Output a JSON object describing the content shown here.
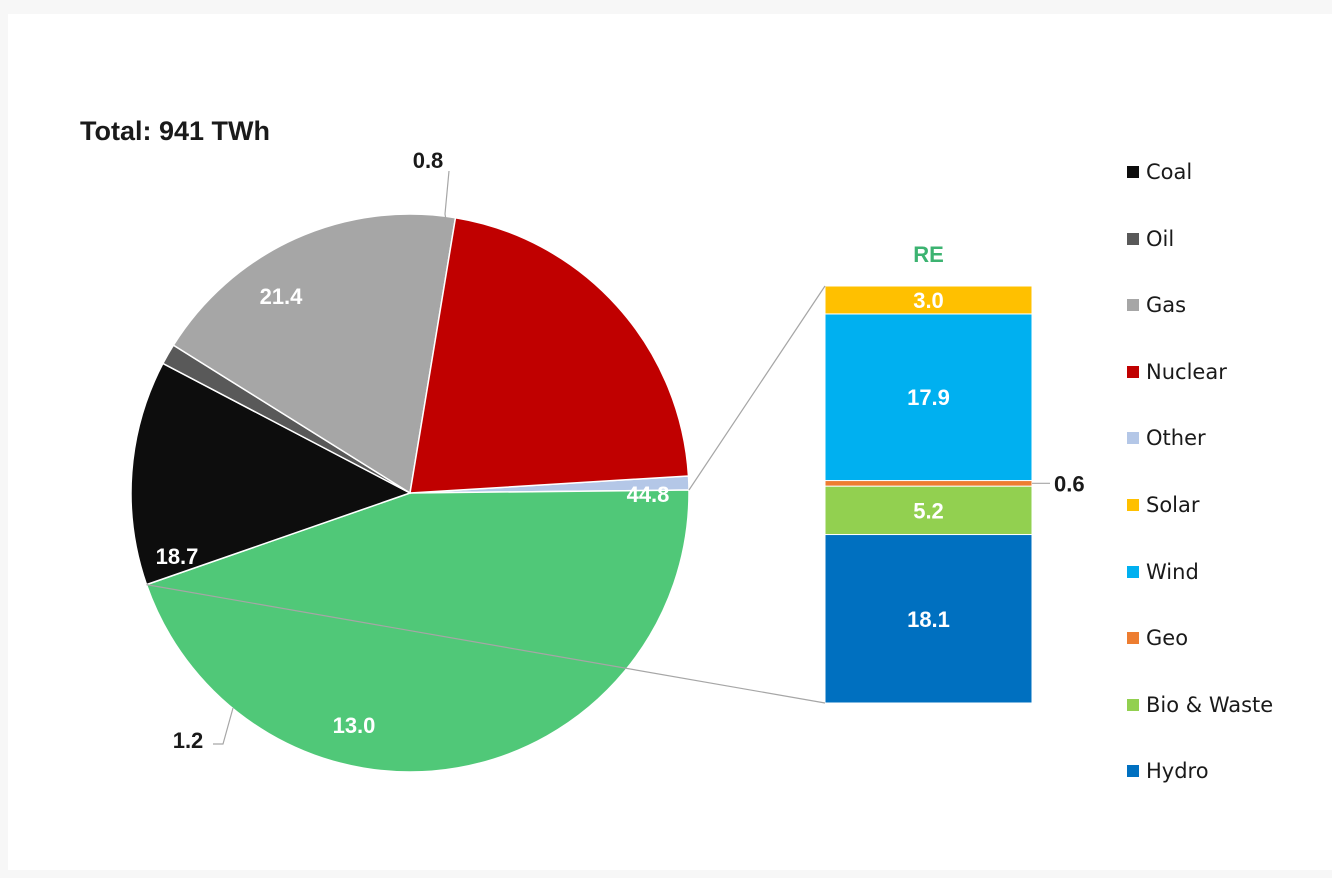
{
  "title": "Total: 941 TWh",
  "chart_data": [
    {
      "type": "pie",
      "title": "Total: 941 TWh",
      "unit": "%",
      "slices": [
        {
          "name": "Other",
          "value": 0.8,
          "color": "#b4c7e7",
          "label": "0.8"
        },
        {
          "name": "RE",
          "value": 44.8,
          "color": "#50c878",
          "label": "44.8"
        },
        {
          "name": "Coal",
          "value": 13.0,
          "color": "#0d0d0d",
          "label": "13.0"
        },
        {
          "name": "Oil",
          "value": 1.2,
          "color": "#595959",
          "label": "1.2"
        },
        {
          "name": "Gas",
          "value": 18.7,
          "color": "#a6a6a6",
          "label": "18.7"
        },
        {
          "name": "Nuclear",
          "value": 21.4,
          "color": "#c00000",
          "label": "21.4"
        }
      ]
    },
    {
      "type": "bar",
      "stacked": true,
      "title": "RE",
      "unit": "%",
      "segments": [
        {
          "name": "Hydro",
          "value": 18.1,
          "color": "#0070c0",
          "label": "18.1"
        },
        {
          "name": "Bio & Waste",
          "value": 5.2,
          "color": "#92d050",
          "label": "5.2"
        },
        {
          "name": "Geo",
          "value": 0.6,
          "color": "#ed7d31",
          "label": "0.6"
        },
        {
          "name": "Wind",
          "value": 17.9,
          "color": "#00b0f0",
          "label": "17.9"
        },
        {
          "name": "Solar",
          "value": 3.0,
          "color": "#ffc000",
          "label": "3.0"
        }
      ]
    }
  ],
  "legend": [
    {
      "label": "Coal",
      "color": "#0d0d0d"
    },
    {
      "label": "Oil",
      "color": "#595959"
    },
    {
      "label": "Gas",
      "color": "#a6a6a6"
    },
    {
      "label": "Nuclear",
      "color": "#c00000"
    },
    {
      "label": "Other",
      "color": "#b4c7e7"
    },
    {
      "label": "Solar",
      "color": "#ffc000"
    },
    {
      "label": "Wind",
      "color": "#00b0f0"
    },
    {
      "label": "Geo",
      "color": "#ed7d31"
    },
    {
      "label": "Bio & Waste",
      "color": "#92d050"
    },
    {
      "label": "Hydro",
      "color": "#0070c0"
    }
  ],
  "re_title_color": "#3cb371"
}
